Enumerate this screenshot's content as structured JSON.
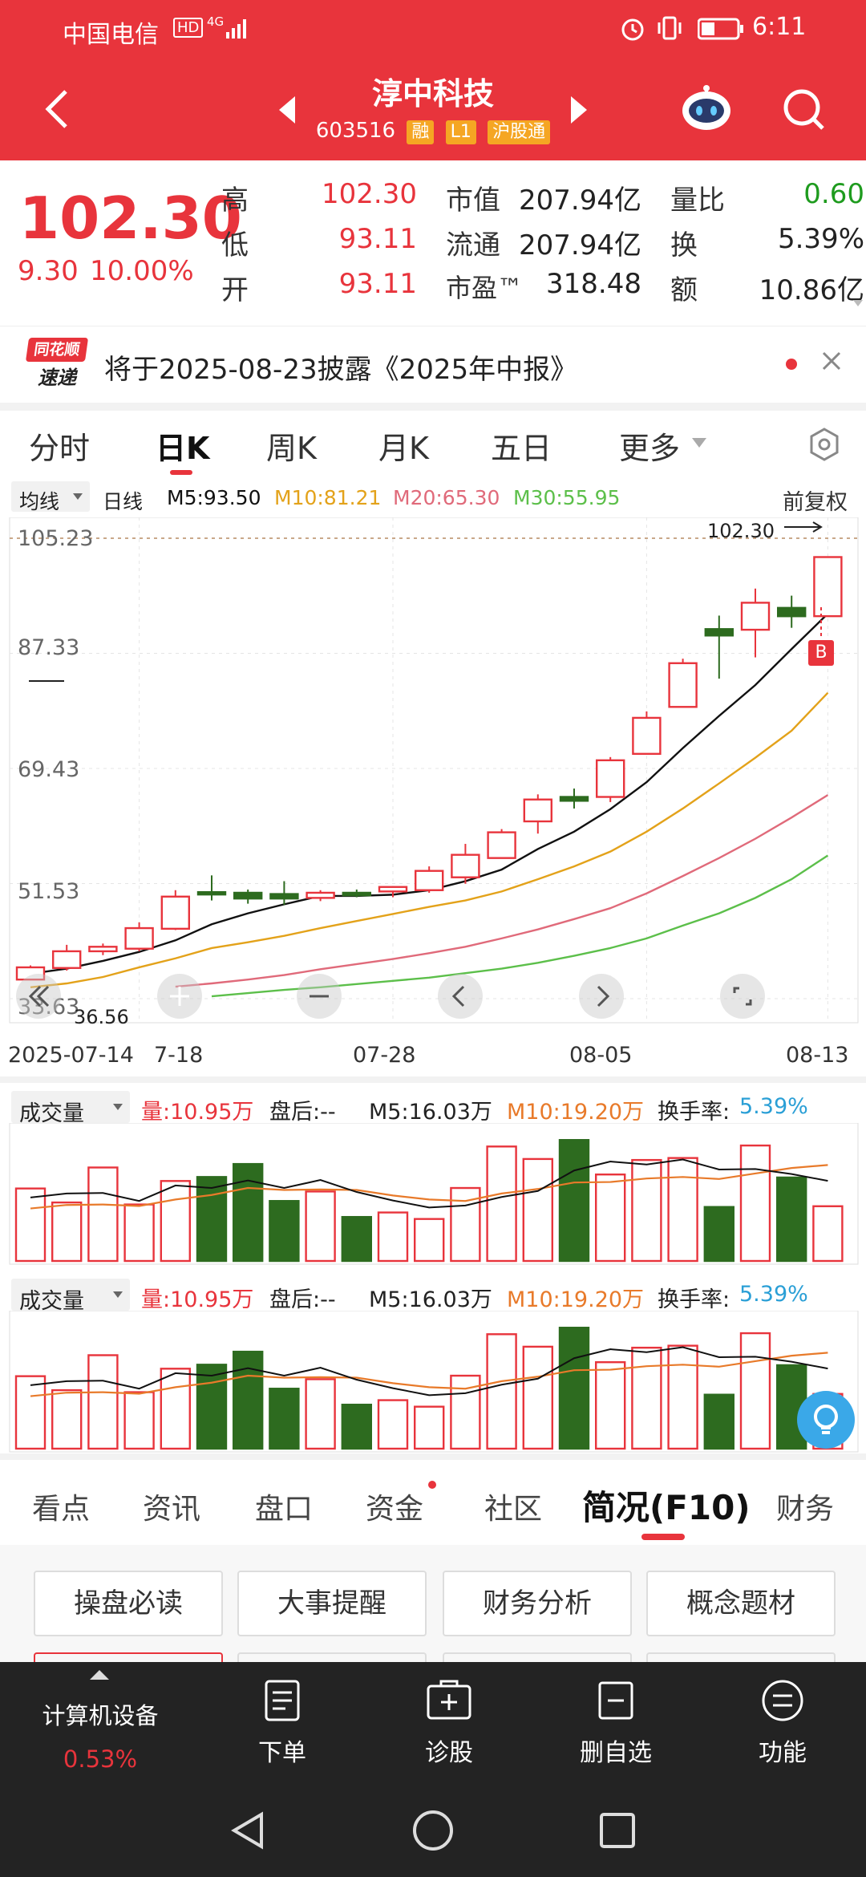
{
  "status_bar": {
    "carrier": "中国电信",
    "hd": "HD",
    "network": "4G",
    "time": "6:11"
  },
  "header": {
    "title": "淳中科技",
    "code": "603516",
    "tags": [
      "融",
      "L1",
      "沪股通"
    ]
  },
  "quote": {
    "price": "102.30",
    "change": "9.30",
    "change_pct": "10.00%",
    "high_label": "高",
    "high": "102.30",
    "low_label": "低",
    "low": "93.11",
    "open_label": "开",
    "open": "93.11",
    "mktcap_label": "市值",
    "mktcap": "207.94亿",
    "float_label": "流通",
    "float": "207.94亿",
    "pe_label": "市盈™",
    "pe": "318.48",
    "volratio_label": "量比",
    "volratio": "0.60",
    "turnover_label": "换",
    "turnover": "5.39%",
    "amount_label": "额",
    "amount": "10.86亿"
  },
  "news": {
    "brand_top": "同花顺",
    "brand_bottom": "速递",
    "text": "将于2025-08-23披露《2025年中报》"
  },
  "chart_tabs": [
    "分时",
    "日K",
    "周K",
    "月K",
    "五日",
    "更多"
  ],
  "ma_legend": {
    "ma_select": "均线",
    "period": "日线",
    "m5": "M5:93.50",
    "m10": "M10:81.21",
    "m20": "M20:65.30",
    "m30": "M30:55.95",
    "adjust": "前复权"
  },
  "colors": {
    "up": "#e8343c",
    "down": "#2d6b1f",
    "m5": "#111111",
    "m10": "#e3a21a",
    "m20": "#e06a7a",
    "m30": "#5cbf4a"
  },
  "chart_data": {
    "type": "candlestick",
    "y_ticks": [
      "105.23",
      "87.33",
      "69.43",
      "51.53",
      "33.63"
    ],
    "ylim": [
      33.63,
      105.23
    ],
    "x_ticks": [
      "2025-07-14",
      "7-18",
      "07-28",
      "08-05",
      "08-13"
    ],
    "max_label": "102.30",
    "min_label": "36.56",
    "buy_marker": "B",
    "candles": [
      {
        "o": 36.6,
        "h": 38.8,
        "l": 36.56,
        "c": 38.5
      },
      {
        "o": 38.4,
        "h": 42.0,
        "l": 38.0,
        "c": 41.0
      },
      {
        "o": 41.0,
        "h": 42.2,
        "l": 40.4,
        "c": 41.7
      },
      {
        "o": 41.4,
        "h": 45.5,
        "l": 41.0,
        "c": 44.6
      },
      {
        "o": 44.5,
        "h": 50.5,
        "l": 44.3,
        "c": 49.5
      },
      {
        "o": 50.2,
        "h": 52.8,
        "l": 48.9,
        "c": 49.9
      },
      {
        "o": 50.1,
        "h": 50.6,
        "l": 48.4,
        "c": 49.2
      },
      {
        "o": 49.9,
        "h": 51.9,
        "l": 48.2,
        "c": 49.2
      },
      {
        "o": 49.3,
        "h": 50.5,
        "l": 48.8,
        "c": 50.1
      },
      {
        "o": 50.1,
        "h": 50.6,
        "l": 49.4,
        "c": 49.7
      },
      {
        "o": 50.3,
        "h": 51.0,
        "l": 49.4,
        "c": 51.0
      },
      {
        "o": 50.5,
        "h": 54.2,
        "l": 50.1,
        "c": 53.5
      },
      {
        "o": 52.5,
        "h": 57.7,
        "l": 51.5,
        "c": 56.0
      },
      {
        "o": 55.5,
        "h": 60.0,
        "l": 55.5,
        "c": 59.5
      },
      {
        "o": 61.2,
        "h": 65.4,
        "l": 59.3,
        "c": 64.6
      },
      {
        "o": 65.0,
        "h": 66.3,
        "l": 63.2,
        "c": 64.4
      },
      {
        "o": 65.0,
        "h": 71.2,
        "l": 64.2,
        "c": 70.7
      },
      {
        "o": 71.7,
        "h": 78.3,
        "l": 71.6,
        "c": 77.3
      },
      {
        "o": 79.0,
        "h": 86.5,
        "l": 79.0,
        "c": 85.8
      },
      {
        "o": 91.1,
        "h": 93.2,
        "l": 83.4,
        "c": 90.1
      },
      {
        "o": 91.0,
        "h": 97.4,
        "l": 86.7,
        "c": 95.2
      },
      {
        "o": 94.4,
        "h": 96.3,
        "l": 91.3,
        "c": 93.1
      },
      {
        "o": 93.11,
        "h": 102.3,
        "l": 93.11,
        "c": 102.3
      }
    ],
    "ma5": [
      37.5,
      38.3,
      39.5,
      40.9,
      42.7,
      45.2,
      46.9,
      48.3,
      49.6,
      49.6,
      49.8,
      50.5,
      51.9,
      53.7,
      56.9,
      59.6,
      63.1,
      67.3,
      72.6,
      77.6,
      82.4,
      88.0,
      93.5
    ],
    "ma10": [
      35.4,
      36.0,
      37.0,
      38.5,
      39.9,
      41.5,
      42.4,
      43.4,
      44.6,
      45.7,
      46.8,
      47.9,
      48.9,
      50.3,
      52.2,
      54.2,
      56.5,
      59.6,
      63.2,
      67.1,
      71.1,
      75.3,
      81.2
    ],
    "ma20": [
      null,
      null,
      null,
      null,
      35.5,
      36.0,
      36.6,
      37.3,
      38.2,
      39.0,
      39.8,
      40.7,
      41.7,
      43.0,
      44.4,
      46.0,
      47.7,
      50.0,
      52.7,
      55.5,
      58.5,
      61.8,
      65.3
    ],
    "ma30": [
      null,
      null,
      null,
      null,
      null,
      34.0,
      34.5,
      35.0,
      35.4,
      35.9,
      36.4,
      36.9,
      37.6,
      38.3,
      39.2,
      40.3,
      41.5,
      43.0,
      45.0,
      46.9,
      49.3,
      52.2,
      55.9
    ]
  },
  "volume_panels": [
    {
      "label": "成交量",
      "vol": "量:10.95万",
      "after": "盘后:--",
      "m5": "M5:16.03万",
      "m10": "M10:19.20万",
      "turnover_label": "换手率:",
      "turnover": "5.39%"
    },
    {
      "label": "成交量",
      "vol": "量:10.95万",
      "after": "盘后:--",
      "m5": "M5:16.03万",
      "m10": "M10:19.20万",
      "turnover_label": "换手率:",
      "turnover": "5.39%"
    }
  ],
  "volume_data": {
    "bars": [
      14.5,
      11.7,
      18.7,
      11.3,
      16.0,
      16.8,
      19.4,
      12.0,
      13.9,
      8.8,
      9.7,
      8.4,
      14.6,
      22.9,
      20.4,
      24.2,
      17.3,
      20.2,
      20.6,
      10.8,
      23.1,
      16.7,
      10.95
    ],
    "ma5": [
      12.7,
      13.5,
      13.6,
      12.0,
      15.1,
      14.6,
      16.1,
      14.6,
      16.2,
      13.8,
      12.1,
      10.7,
      11.1,
      12.8,
      14.0,
      18.1,
      19.9,
      19.3,
      20.3,
      18.3,
      18.4,
      17.4,
      16.03
    ],
    "ma10": [
      10.5,
      11.2,
      11.3,
      11.0,
      12.3,
      13.2,
      14.6,
      14.2,
      14.3,
      14.2,
      13.1,
      12.3,
      12.0,
      13.5,
      14.4,
      15.7,
      15.8,
      16.5,
      16.8,
      16.4,
      17.5,
      18.6,
      19.2
    ]
  },
  "bottom_tabs": [
    "看点",
    "资讯",
    "盘口",
    "资金",
    "社区",
    "简况(F10)",
    "财务"
  ],
  "feature_buttons": [
    "操盘必读",
    "大事提醒",
    "财务分析",
    "概念题材"
  ],
  "nav": {
    "sector": "计算机设备",
    "sector_pct": "0.53%",
    "items": [
      "下单",
      "诊股",
      "删自选",
      "功能"
    ]
  }
}
